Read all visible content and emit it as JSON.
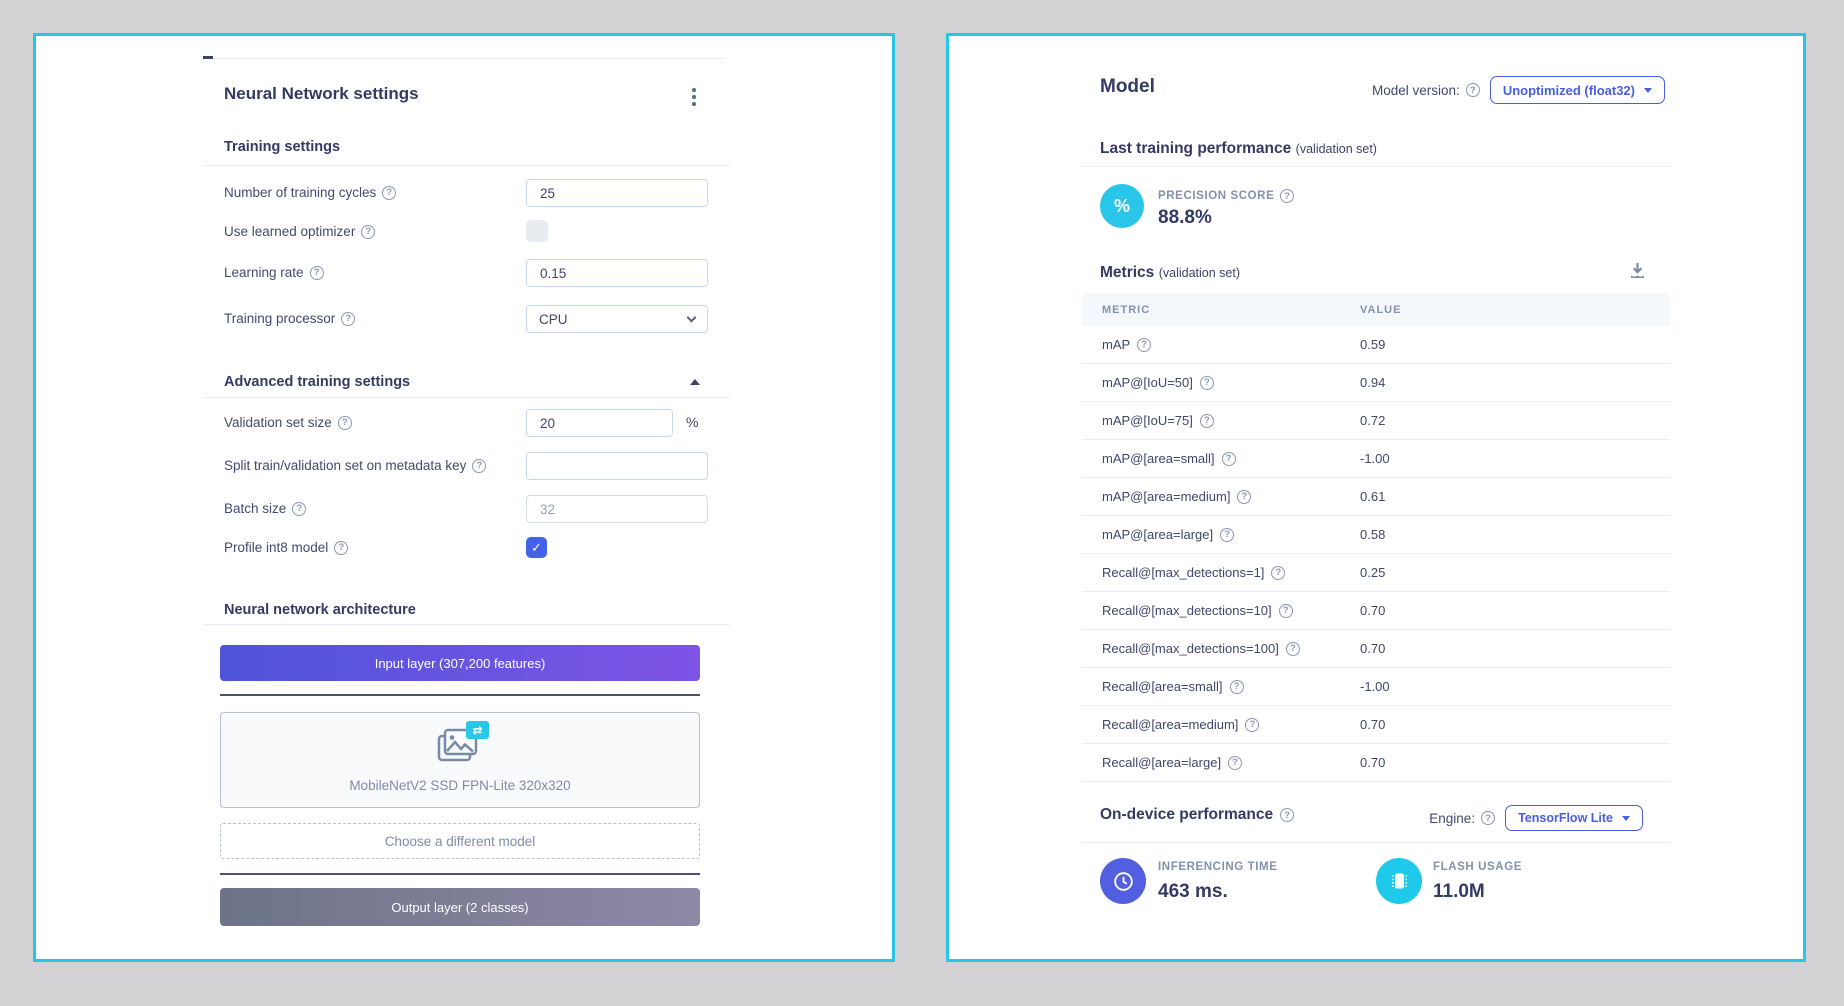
{
  "left": {
    "title": "Neural Network settings",
    "training": {
      "heading": "Training settings",
      "cycles_label": "Number of training cycles",
      "cycles_value": "25",
      "optimizer_label": "Use learned optimizer",
      "lr_label": "Learning rate",
      "lr_value": "0.15",
      "processor_label": "Training processor",
      "processor_value": "CPU"
    },
    "advanced": {
      "heading": "Advanced training settings",
      "validation_label": "Validation set size",
      "validation_value": "20",
      "validation_suffix": "%",
      "split_label": "Split train/validation set on metadata key",
      "split_value": "",
      "batch_label": "Batch size",
      "batch_placeholder": "32",
      "int8_label": "Profile int8 model",
      "int8_check": "✓"
    },
    "architecture": {
      "heading": "Neural network architecture",
      "input_layer_label": "Input layer (307,200 features)",
      "model_name": "MobileNetV2 SSD FPN-Lite 320x320",
      "choose_model_label": "Choose a different model",
      "output_layer_label": "Output layer (2 classes)"
    }
  },
  "right": {
    "title": "Model",
    "version_label": "Model version:",
    "version_value": "Unoptimized (float32)",
    "last_training_heading": "Last training performance",
    "last_training_sub": "(validation set)",
    "precision_label": "PRECISION SCORE",
    "precision_value": "88.8%",
    "precision_symbol": "%",
    "metrics_heading": "Metrics",
    "metrics_sub": "(validation set)",
    "table": {
      "columns": [
        "METRIC",
        "VALUE"
      ],
      "rows": [
        [
          "mAP",
          "0.59"
        ],
        [
          "mAP@[IoU=50]",
          "0.94"
        ],
        [
          "mAP@[IoU=75]",
          "0.72"
        ],
        [
          "mAP@[area=small]",
          "-1.00"
        ],
        [
          "mAP@[area=medium]",
          "0.61"
        ],
        [
          "mAP@[area=large]",
          "0.58"
        ],
        [
          "Recall@[max_detections=1]",
          "0.25"
        ],
        [
          "Recall@[max_detections=10]",
          "0.70"
        ],
        [
          "Recall@[max_detections=100]",
          "0.70"
        ],
        [
          "Recall@[area=small]",
          "-1.00"
        ],
        [
          "Recall@[area=medium]",
          "0.70"
        ],
        [
          "Recall@[area=large]",
          "0.70"
        ]
      ]
    },
    "ondevice_heading": "On-device performance",
    "engine_label": "Engine:",
    "engine_value": "TensorFlow Lite",
    "stats": [
      {
        "label": "INFERENCING TIME",
        "value": "463 ms."
      },
      {
        "label": "FLASH USAGE",
        "value": "11.0M"
      }
    ]
  },
  "colors": {
    "accent_cyan": "#27c6e9",
    "accent_blue": "#4a5de0",
    "navy": "#343a63",
    "indigo": "#515fe0",
    "input_layer_gradient": [
      "#4f55d8",
      "#7e53e6"
    ],
    "output_layer_gradient": [
      "#6d7487",
      "#8f88a6"
    ]
  }
}
